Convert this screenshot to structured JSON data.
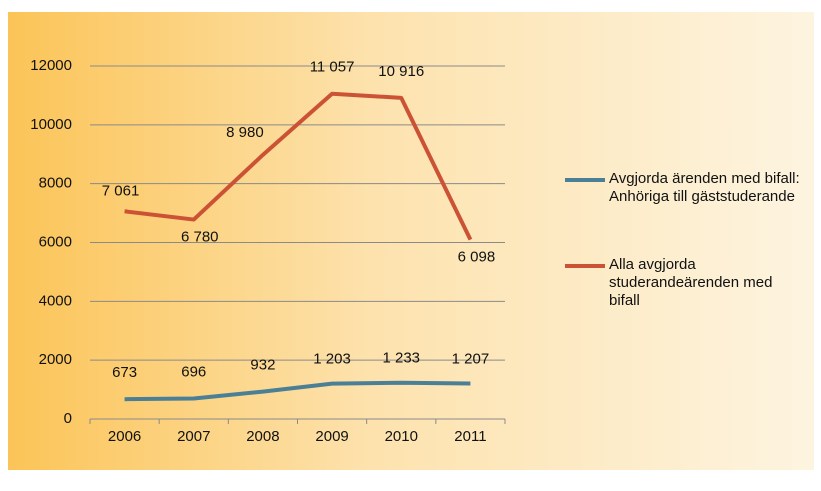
{
  "chart_data": {
    "type": "line",
    "categories": [
      "2006",
      "2007",
      "2008",
      "2009",
      "2010",
      "2011"
    ],
    "series": [
      {
        "name": "Avgjorda ärenden med bifall: Anhöriga till gäststuderande",
        "color": "#4a7f96",
        "values": [
          673,
          696,
          932,
          1203,
          1233,
          1207
        ],
        "value_labels": [
          "673",
          "696",
          "932",
          "1 203",
          "1 233",
          "1 207"
        ]
      },
      {
        "name": "Alla avgjorda studerandeärenden med bifall",
        "color": "#cc5236",
        "values": [
          7061,
          6780,
          8980,
          11057,
          10916,
          6098
        ],
        "value_labels": [
          "7 061",
          "6 780",
          "8 980",
          "11 057",
          "10 916",
          "6 098"
        ]
      }
    ],
    "ylim": [
      0,
      12000
    ],
    "yticks": [
      0,
      2000,
      4000,
      6000,
      8000,
      10000,
      12000
    ],
    "grid": true,
    "legend": "right"
  }
}
